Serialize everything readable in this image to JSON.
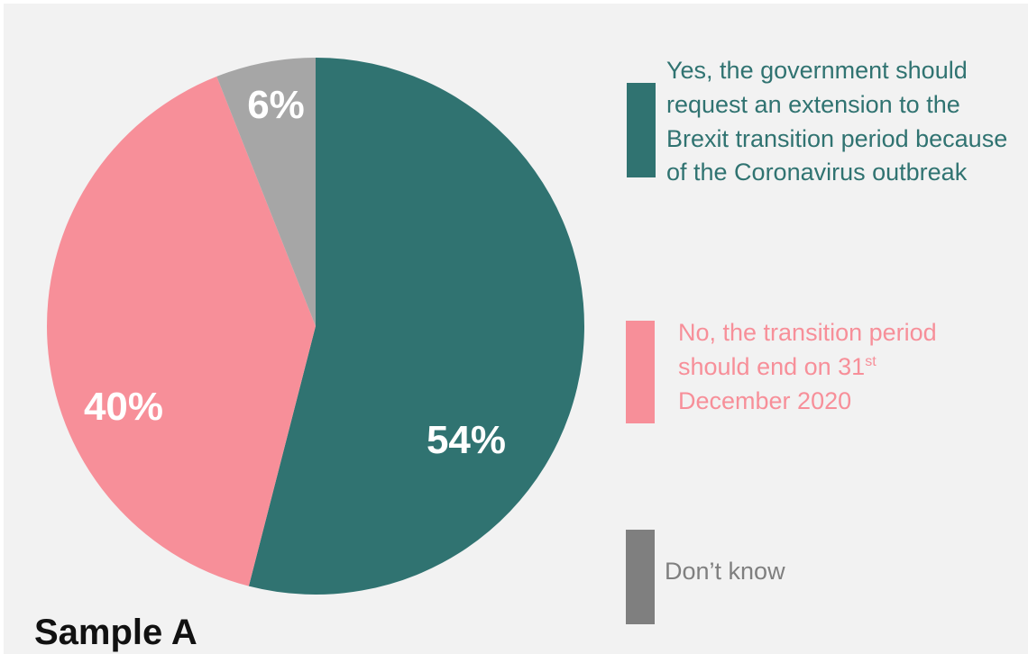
{
  "chart_data": {
    "type": "pie",
    "slices": [
      {
        "label": "Yes, the government should request an extension to the Brexit transition period because of the Coronavirus outbreak",
        "value": 54,
        "display": "54%",
        "color": "#307371"
      },
      {
        "label": "No, the transition period should end on 31st December 2020",
        "value": 40,
        "display": "40%",
        "color": "#f78f99"
      },
      {
        "label": "Don’t know",
        "value": 6,
        "display": "6%",
        "color": "#a6a6a6"
      }
    ],
    "start_angle": "12 o'clock",
    "direction": "clockwise"
  },
  "legend": {
    "yes": {
      "text": "Yes, the government should request an extension to the Brexit transition period because of the Coronavirus outbreak",
      "swatch_color": "#307371",
      "text_color": "#307371"
    },
    "no": {
      "text_main": "No, the transition period should end on 31",
      "text_sup": "st",
      "text_end": "December 2020",
      "swatch_color": "#f78f99",
      "text_color": "#f78f99"
    },
    "dont_know": {
      "text": "Don’t know",
      "swatch_color": "#7f7f7f",
      "text_color": "#7f7f7f"
    }
  },
  "sample_label": "Sample A"
}
